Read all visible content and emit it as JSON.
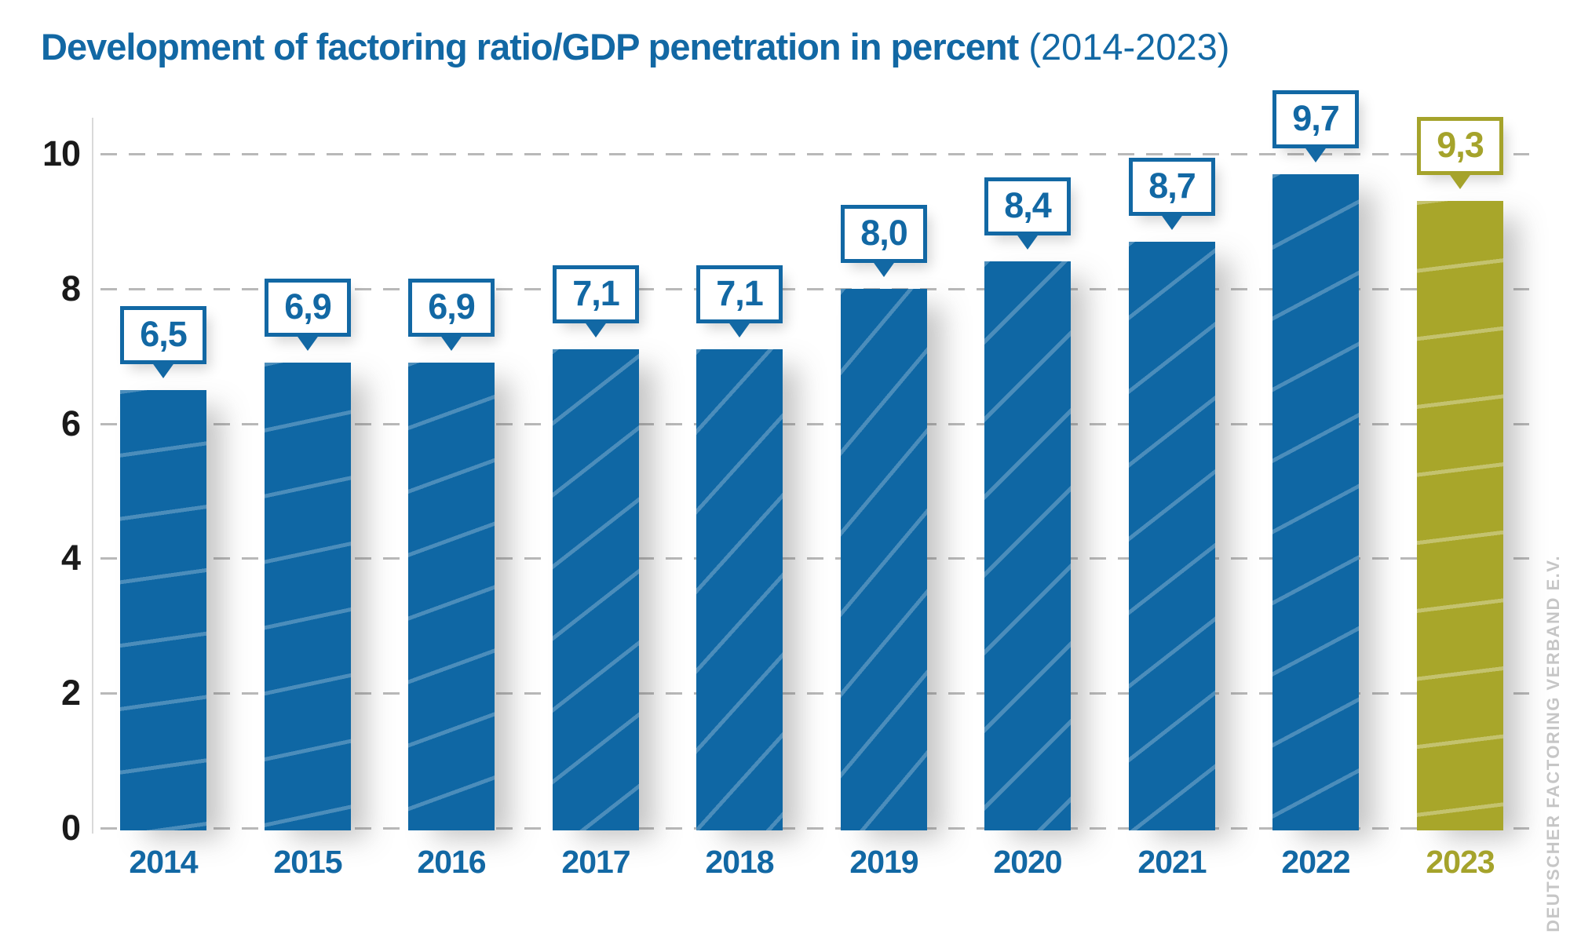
{
  "title": {
    "main": "Development of factoring ratio/GDP penetration in percent",
    "suffix": " (2014-2023)"
  },
  "watermark": "DEUTSCHER FACTORING VERBAND E.V.",
  "colors": {
    "bar_blue": "#0F67A4",
    "bar_olive": "#A8A62A",
    "accent_blue": "#1268A4",
    "accent_olive": "#A5A32B",
    "gridline": "#b9b9b9",
    "axis_line": "#d9d9d9",
    "tick_label": "#1a1a1a",
    "watermark_gray": "#c6c6c6"
  },
  "chart_data": {
    "type": "bar",
    "title": "Development of factoring ratio/GDP penetration in percent (2014-2023)",
    "categories": [
      "2014",
      "2015",
      "2016",
      "2017",
      "2018",
      "2019",
      "2020",
      "2021",
      "2022",
      "2023"
    ],
    "values": [
      6.5,
      6.9,
      6.9,
      7.1,
      7.1,
      8.0,
      8.4,
      8.7,
      9.7,
      9.3
    ],
    "value_labels": [
      "6,5",
      "6,9",
      "6,9",
      "7,1",
      "7,1",
      "8,0",
      "8,4",
      "8,7",
      "9,7",
      "9,3"
    ],
    "xlabel": "",
    "ylabel": "",
    "ylim": [
      0,
      10
    ],
    "y_ticks": [
      10,
      8,
      6,
      4,
      2,
      0
    ],
    "grid": "horizontal-dashed",
    "legend": "none",
    "highlight_category": "2023",
    "highlight_note": "2023 bar and label shown in olive green; all other years in blue"
  }
}
